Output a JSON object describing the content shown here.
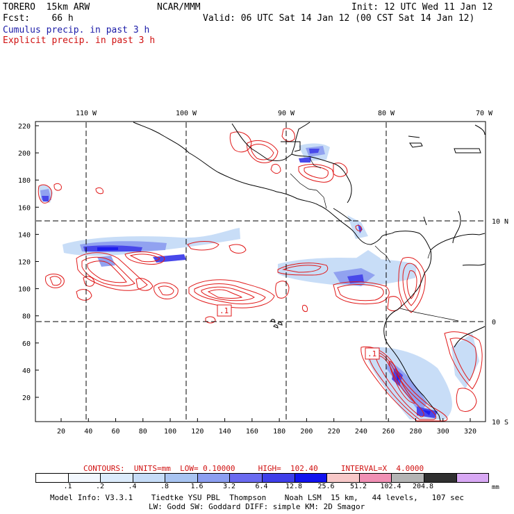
{
  "header": {
    "model": "TORERO  15km ARW",
    "center": "NCAR/MMM",
    "init": "Init: 12 UTC Wed 11 Jan 12",
    "fcst": "Fcst:    66 h",
    "valid": "Valid: 06 UTC Sat 14 Jan 12 (00 CST Sat 14 Jan 12)",
    "cumulus_label": "Cumulus precip. in past 3 h",
    "explicit_label": "Explicit precip. in past 3 h"
  },
  "map": {
    "lon_labels": [
      "110 W",
      "100 W",
      "90 W",
      "80 W",
      "70 W"
    ],
    "lat_labels": [
      "10 N",
      "0",
      "10 S"
    ],
    "y_ticks": [
      "220",
      "200",
      "180",
      "160",
      "140",
      "120",
      "100",
      "80",
      "60",
      "40",
      "20"
    ],
    "x_ticks": [
      "20",
      "40",
      "60",
      "80",
      "100",
      "120",
      "140",
      "160",
      "180",
      "200",
      "220",
      "240",
      "260",
      "280",
      "300",
      "320"
    ],
    "contour_labels": [
      ".1",
      ".1"
    ]
  },
  "contours_info": {
    "text": "CONTOURS:  UNITS=mm  LOW= 0.10000     HIGH=  102.40     INTERVAL=X  4.0000"
  },
  "colorbar": {
    "labels": [
      ".1",
      ".2",
      ".4",
      ".8",
      "1.6",
      "3.2",
      "6.4",
      "12.8",
      "25.6",
      "51.2",
      "102.4",
      "204.8"
    ],
    "unit": "mm",
    "colors": [
      "#ffffff",
      "#f2f7fd",
      "#dcebfb",
      "#c6dcf7",
      "#a8c4f1",
      "#8c9ef0",
      "#6a6af0",
      "#3f3fe9",
      "#1212ee",
      "#f7c8c8",
      "#f090b4",
      "#b4b4b4",
      "#303030",
      "#d8a8f4"
    ]
  },
  "footer": {
    "line1": "Model Info: V3.3.1    Tiedtke YSU PBL  Thompson    Noah LSM  15 km,   44 levels,   107 sec",
    "line2": "LW: Godd SW: Goddard DIFF: simple KM: 2D Smagor"
  }
}
